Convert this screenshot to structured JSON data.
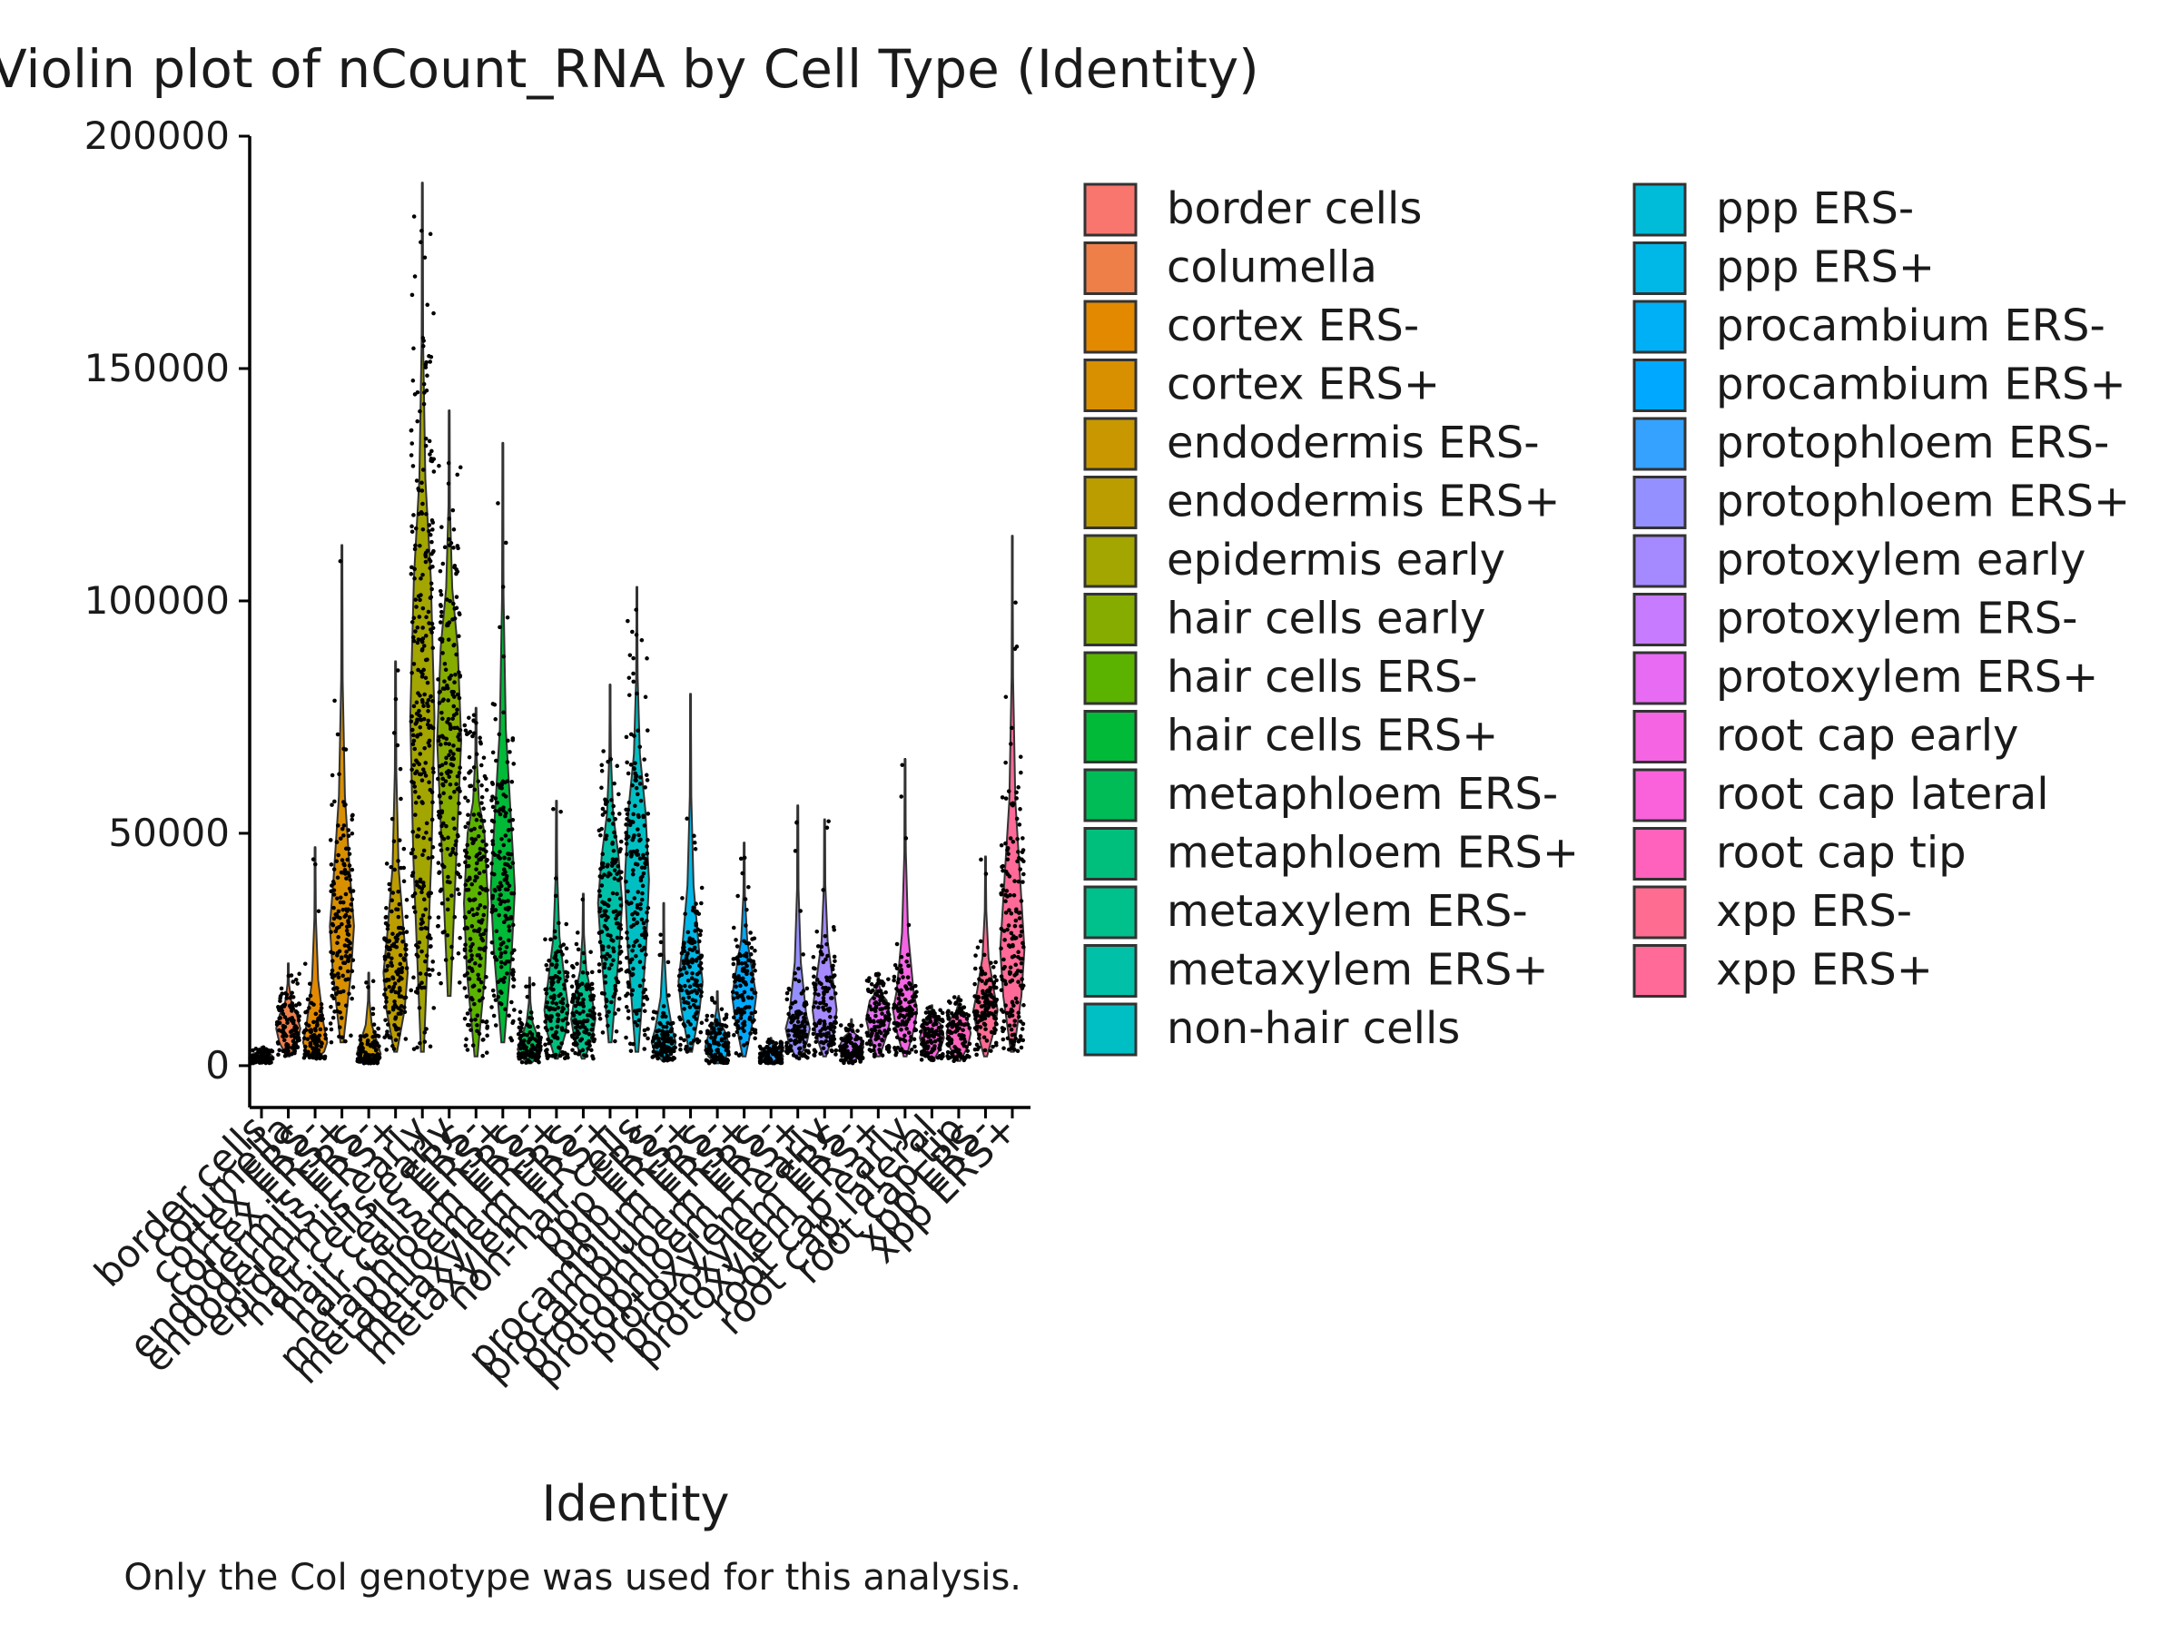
{
  "chart_data": {
    "type": "violin",
    "title": "Violin plot of nCount_RNA by Cell Type (Identity)",
    "xlabel": "Identity",
    "ylabel": "",
    "caption": "Only the Col genotype was used for this analysis.",
    "ylim": [
      -9000,
      200000
    ],
    "yticks": [
      0,
      50000,
      100000,
      150000,
      200000
    ],
    "grid": false,
    "legend_position": "right",
    "categories": [
      "border cells",
      "columella",
      "cortex ERS-",
      "cortex ERS+",
      "endodermis ERS-",
      "endodermis ERS+",
      "epidermis early",
      "hair cells early",
      "hair cells ERS-",
      "hair cells ERS+",
      "metaphloem ERS-",
      "metaphloem ERS+",
      "metaxylem ERS-",
      "metaxylem ERS+",
      "non-hair cells",
      "ppp ERS-",
      "ppp ERS+",
      "procambium ERS-",
      "procambium ERS+",
      "protophloem ERS-",
      "protophloem ERS+",
      "protoxylem early",
      "protoxylem ERS-",
      "protoxylem ERS+",
      "root cap early",
      "root cap lateral",
      "root cap tip",
      "xpp ERS-",
      "xpp ERS+"
    ],
    "colors": [
      "#F8766D",
      "#EF7F48",
      "#E38900",
      "#D89000",
      "#C99800",
      "#BB9D00",
      "#A3A500",
      "#86AC00",
      "#5BB300",
      "#00BA38",
      "#00BC56",
      "#00BF7D",
      "#00C08B",
      "#00C1A7",
      "#00BFC4",
      "#00BCD8",
      "#00B8E7",
      "#00B0F6",
      "#00A9FF",
      "#35A2FF",
      "#9590FF",
      "#A58AFF",
      "#C77CFF",
      "#E76BF3",
      "#F564E3",
      "#FA62DB",
      "#FF62BC",
      "#FF6C91",
      "#FF6A98"
    ],
    "series": [
      {
        "name": "border cells",
        "min": 500,
        "q1": 1200,
        "median": 1800,
        "q3": 2600,
        "max": 4000
      },
      {
        "name": "columella",
        "min": 2000,
        "q1": 5000,
        "median": 8000,
        "q3": 11000,
        "max": 22000
      },
      {
        "name": "cortex ERS-",
        "min": 1500,
        "q1": 3000,
        "median": 5000,
        "q3": 9000,
        "max": 47000
      },
      {
        "name": "cortex ERS+",
        "min": 5000,
        "q1": 20000,
        "median": 30000,
        "q3": 40000,
        "max": 112000
      },
      {
        "name": "endodermis ERS-",
        "min": 500,
        "q1": 1500,
        "median": 2500,
        "q3": 5000,
        "max": 20000
      },
      {
        "name": "endodermis ERS+",
        "min": 3000,
        "q1": 12000,
        "median": 20000,
        "q3": 28000,
        "max": 87000
      },
      {
        "name": "epidermis early",
        "min": 3000,
        "q1": 45000,
        "median": 75000,
        "q3": 105000,
        "max": 190000
      },
      {
        "name": "hair cells early",
        "min": 15000,
        "q1": 55000,
        "median": 70000,
        "q3": 90000,
        "max": 141000
      },
      {
        "name": "hair cells ERS-",
        "min": 2000,
        "q1": 20000,
        "median": 35000,
        "q3": 50000,
        "max": 77000
      },
      {
        "name": "hair cells ERS+",
        "min": 5000,
        "q1": 25000,
        "median": 38000,
        "q3": 52000,
        "max": 134000
      },
      {
        "name": "metaphloem ERS-",
        "min": 500,
        "q1": 2000,
        "median": 3500,
        "q3": 6000,
        "max": 19000
      },
      {
        "name": "metaphloem ERS+",
        "min": 1500,
        "q1": 7000,
        "median": 12000,
        "q3": 18000,
        "max": 57000
      },
      {
        "name": "metaxylem ERS-",
        "min": 1500,
        "q1": 6000,
        "median": 10000,
        "q3": 15000,
        "max": 37000
      },
      {
        "name": "metaxylem ERS+",
        "min": 5000,
        "q1": 25000,
        "median": 35000,
        "q3": 45000,
        "max": 82000
      },
      {
        "name": "non-hair cells",
        "min": 3000,
        "q1": 25000,
        "median": 40000,
        "q3": 55000,
        "max": 103000
      },
      {
        "name": "ppp ERS-",
        "min": 1000,
        "q1": 3000,
        "median": 5000,
        "q3": 8000,
        "max": 35000
      },
      {
        "name": "ppp ERS+",
        "min": 3000,
        "q1": 12000,
        "median": 18000,
        "q3": 25000,
        "max": 80000
      },
      {
        "name": "procambium ERS-",
        "min": 500,
        "q1": 2000,
        "median": 4000,
        "q3": 7000,
        "max": 16000
      },
      {
        "name": "procambium ERS+",
        "min": 2000,
        "q1": 10000,
        "median": 15000,
        "q3": 20000,
        "max": 48000
      },
      {
        "name": "protophloem ERS-",
        "min": 500,
        "q1": 1000,
        "median": 2000,
        "q3": 3500,
        "max": 6000
      },
      {
        "name": "protophloem ERS+",
        "min": 1500,
        "q1": 5000,
        "median": 8000,
        "q3": 11000,
        "max": 56000
      },
      {
        "name": "protoxylem early",
        "min": 2000,
        "q1": 7000,
        "median": 12000,
        "q3": 18000,
        "max": 53000
      },
      {
        "name": "protoxylem ERS-",
        "min": 500,
        "q1": 2500,
        "median": 4000,
        "q3": 6000,
        "max": 10000
      },
      {
        "name": "protoxylem ERS+",
        "min": 2000,
        "q1": 7000,
        "median": 10000,
        "q3": 14000,
        "max": 20000
      },
      {
        "name": "root cap early",
        "min": 2000,
        "q1": 8000,
        "median": 12000,
        "q3": 16000,
        "max": 66000
      },
      {
        "name": "root cap lateral",
        "min": 1000,
        "q1": 4000,
        "median": 6000,
        "q3": 9000,
        "max": 13000
      },
      {
        "name": "root cap tip",
        "min": 1000,
        "q1": 4000,
        "median": 7000,
        "q3": 10000,
        "max": 15000
      },
      {
        "name": "xpp ERS-",
        "min": 2000,
        "q1": 8000,
        "median": 12000,
        "q3": 16000,
        "max": 45000
      },
      {
        "name": "xpp ERS+",
        "min": 3000,
        "q1": 15000,
        "median": 25000,
        "q3": 38000,
        "max": 114000
      }
    ],
    "legend_columns": [
      [
        "border cells",
        "columella",
        "cortex ERS-",
        "cortex ERS+",
        "endodermis ERS-",
        "endodermis ERS+",
        "epidermis early",
        "hair cells early",
        "hair cells ERS-",
        "hair cells ERS+",
        "metaphloem ERS-",
        "metaphloem ERS+",
        "metaxylem ERS-",
        "metaxylem ERS+",
        "non-hair cells"
      ],
      [
        "ppp ERS-",
        "ppp ERS+",
        "procambium ERS-",
        "procambium ERS+",
        "protophloem ERS-",
        "protophloem ERS+",
        "protoxylem early",
        "protoxylem ERS-",
        "protoxylem ERS+",
        "root cap early",
        "root cap lateral",
        "root cap tip",
        "xpp ERS-",
        "xpp ERS+"
      ]
    ]
  }
}
